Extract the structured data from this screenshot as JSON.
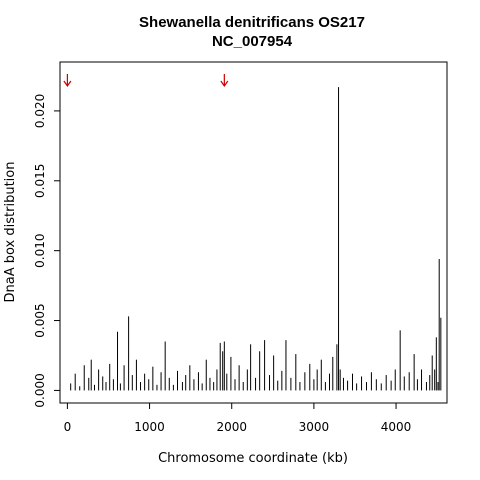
{
  "chart_data": {
    "type": "bar",
    "title": "Shewanella denitrificans OS217",
    "subtitle": "NC_007954",
    "xlabel": "Chromosome coordinate (kb)",
    "ylabel": "DnaA box distribution",
    "xlim": [
      -90,
      4620
    ],
    "ylim": [
      -0.0009,
      0.0235
    ],
    "x_ticks": [
      0,
      1000,
      2000,
      3000,
      4000
    ],
    "y_ticks": [
      0.0,
      0.005,
      0.01,
      0.015,
      0.02
    ],
    "y_tick_labels": [
      "0.000",
      "0.005",
      "0.010",
      "0.015",
      "0.020"
    ],
    "bar_color": "#000000",
    "arrow_color": "#cc0000",
    "arrows_kb": [
      0,
      1910
    ],
    "series": [
      {
        "x": [
          40,
          95,
          150,
          205,
          260,
          290,
          330,
          380,
          430,
          470,
          515,
          560,
          610,
          645,
          690,
          745,
          790,
          840,
          890,
          940,
          990,
          1040,
          1090,
          1140,
          1190,
          1240,
          1290,
          1340,
          1400,
          1440,
          1490,
          1540,
          1595,
          1640,
          1690,
          1735,
          1780,
          1820,
          1860,
          1890,
          1910,
          1940,
          1990,
          2040,
          2090,
          2140,
          2190,
          2230,
          2290,
          2340,
          2400,
          2460,
          2510,
          2560,
          2610,
          2660,
          2720,
          2780,
          2830,
          2890,
          2950,
          3000,
          3040,
          3090,
          3140,
          3190,
          3230,
          3280,
          3300,
          3320,
          3360,
          3410,
          3470,
          3520,
          3580,
          3640,
          3700,
          3760,
          3820,
          3880,
          3940,
          3990,
          4050,
          4100,
          4160,
          4220,
          4260,
          4310,
          4370,
          4410,
          4440,
          4470,
          4490,
          4510,
          4525,
          4545
        ],
        "values": [
          0.0005,
          0.0012,
          0.0003,
          0.0018,
          0.0009,
          0.0022,
          0.0004,
          0.0015,
          0.001,
          0.0006,
          0.0019,
          0.0008,
          0.0042,
          0.0005,
          0.0018,
          0.0053,
          0.0011,
          0.0022,
          0.0006,
          0.0012,
          0.0008,
          0.0017,
          0.0004,
          0.0013,
          0.0035,
          0.0009,
          0.0004,
          0.0014,
          0.0006,
          0.0011,
          0.0018,
          0.0008,
          0.0013,
          0.0005,
          0.0022,
          0.0009,
          0.0006,
          0.0015,
          0.0034,
          0.0028,
          0.0035,
          0.0012,
          0.0024,
          0.0008,
          0.0018,
          0.0006,
          0.0015,
          0.0033,
          0.0009,
          0.0028,
          0.0036,
          0.0011,
          0.0025,
          0.0007,
          0.0014,
          0.0036,
          0.0009,
          0.0026,
          0.0006,
          0.0013,
          0.0019,
          0.0008,
          0.0015,
          0.0022,
          0.0006,
          0.0012,
          0.0024,
          0.0033,
          0.0217,
          0.0015,
          0.0009,
          0.0007,
          0.0012,
          0.0005,
          0.001,
          0.0006,
          0.0013,
          0.0008,
          0.0005,
          0.0011,
          0.0007,
          0.0015,
          0.0043,
          0.001,
          0.0013,
          0.0026,
          0.0008,
          0.0015,
          0.0006,
          0.0011,
          0.0025,
          0.0015,
          0.0038,
          0.0006,
          0.0094,
          0.0052
        ]
      }
    ]
  }
}
